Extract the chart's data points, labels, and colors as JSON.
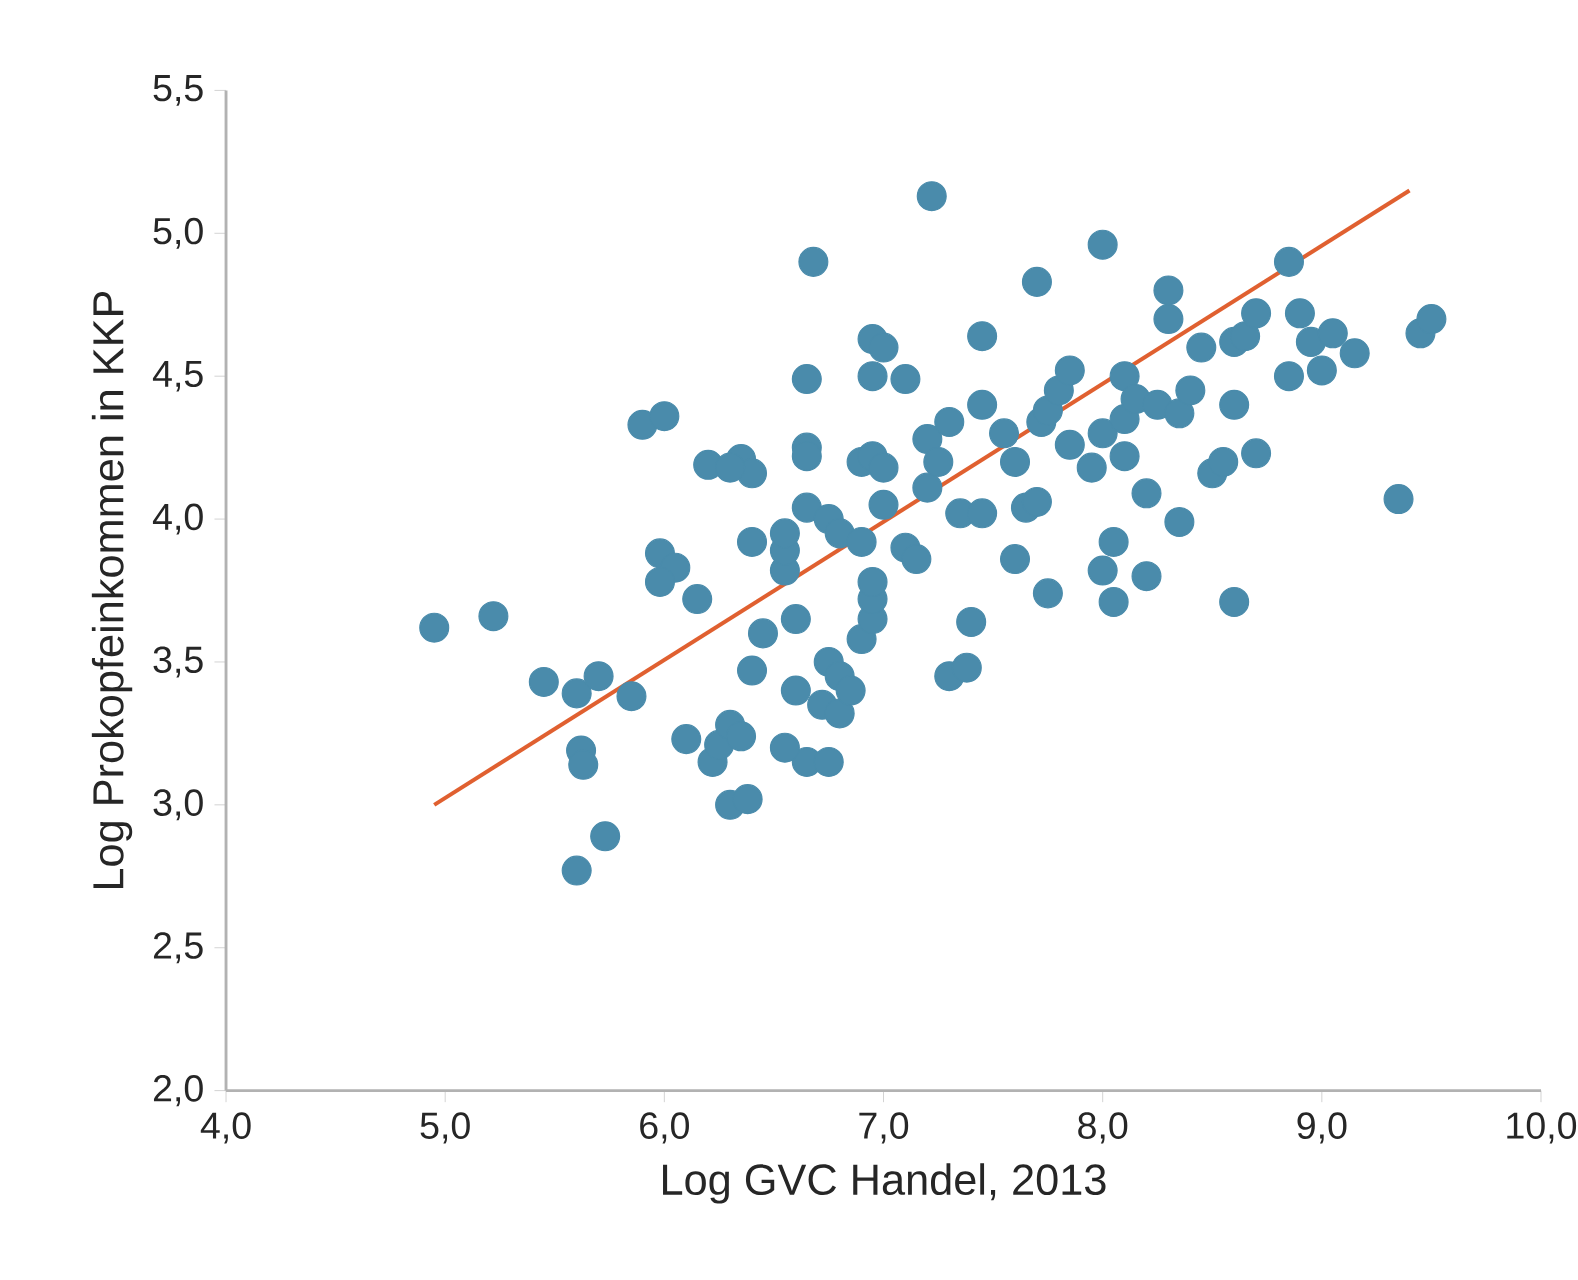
{
  "chart_data": {
    "type": "scatter",
    "xlabel": "Log GVC Handel, 2013",
    "ylabel": "Log Prokopfeinkommen in KKP",
    "xlim": [
      4.0,
      10.0
    ],
    "ylim": [
      2.0,
      5.5
    ],
    "xticks": [
      {
        "value": 4.0,
        "label": "4,0"
      },
      {
        "value": 5.0,
        "label": "5,0"
      },
      {
        "value": 6.0,
        "label": "6,0"
      },
      {
        "value": 7.0,
        "label": "7,0"
      },
      {
        "value": 8.0,
        "label": "8,0"
      },
      {
        "value": 9.0,
        "label": "9,0"
      },
      {
        "value": 10.0,
        "label": "10,0"
      }
    ],
    "yticks": [
      {
        "value": 2.0,
        "label": "2,0"
      },
      {
        "value": 2.5,
        "label": "2,5"
      },
      {
        "value": 3.0,
        "label": "3,0"
      },
      {
        "value": 3.5,
        "label": "3,5"
      },
      {
        "value": 4.0,
        "label": "4,0"
      },
      {
        "value": 4.5,
        "label": "4,5"
      },
      {
        "value": 5.0,
        "label": "5,0"
      },
      {
        "value": 5.5,
        "label": "5,5"
      }
    ],
    "grid": false,
    "series": [
      {
        "color": "#4a8bab",
        "marker": "circle",
        "x": [
          4.95,
          5.22,
          5.45,
          5.6,
          5.7,
          5.85,
          5.62,
          5.63,
          5.73,
          5.6,
          5.9,
          6.0,
          5.98,
          6.05,
          5.98,
          6.15,
          6.1,
          6.22,
          6.25,
          6.3,
          6.35,
          6.3,
          6.38,
          6.2,
          6.35,
          6.4,
          6.3,
          6.4,
          6.45,
          6.4,
          6.55,
          6.55,
          6.55,
          6.6,
          6.6,
          6.65,
          6.55,
          6.75,
          6.65,
          6.68,
          6.65,
          6.65,
          6.65,
          6.75,
          6.8,
          6.9,
          6.75,
          6.8,
          6.72,
          6.8,
          6.85,
          6.9,
          6.95,
          6.95,
          6.95,
          6.9,
          6.95,
          7.0,
          6.95,
          6.95,
          7.0,
          7.1,
          7.1,
          7.15,
          7.0,
          7.2,
          7.22,
          7.2,
          7.25,
          7.3,
          7.3,
          7.38,
          7.4,
          7.35,
          7.45,
          7.45,
          7.45,
          7.55,
          7.6,
          7.6,
          7.65,
          7.7,
          7.7,
          7.72,
          7.75,
          7.75,
          7.8,
          7.85,
          7.85,
          7.95,
          8.0,
          8.0,
          8.0,
          8.05,
          8.05,
          8.1,
          8.1,
          8.1,
          8.15,
          8.2,
          8.2,
          8.25,
          8.3,
          8.3,
          8.35,
          8.35,
          8.4,
          8.45,
          8.5,
          8.55,
          8.6,
          8.6,
          8.6,
          8.65,
          8.7,
          8.7,
          8.85,
          8.85,
          8.9,
          8.95,
          9.0,
          9.05,
          9.15,
          9.35,
          9.45,
          9.5
        ],
        "values": [
          3.62,
          3.66,
          3.43,
          3.39,
          3.45,
          3.38,
          3.19,
          3.14,
          2.89,
          2.77,
          4.33,
          4.36,
          3.88,
          3.83,
          3.78,
          3.72,
          3.23,
          3.15,
          3.21,
          3.28,
          3.24,
          3.0,
          3.02,
          4.19,
          4.21,
          4.16,
          4.18,
          3.92,
          3.6,
          3.47,
          3.82,
          3.89,
          3.95,
          3.65,
          3.4,
          3.15,
          3.2,
          3.15,
          4.49,
          4.9,
          4.25,
          4.22,
          4.04,
          4.0,
          3.95,
          3.92,
          3.5,
          3.45,
          3.35,
          3.32,
          3.4,
          3.58,
          3.65,
          3.72,
          3.78,
          4.2,
          4.22,
          4.18,
          4.5,
          4.63,
          4.6,
          4.49,
          3.9,
          3.86,
          4.05,
          4.11,
          5.13,
          4.28,
          4.2,
          4.34,
          3.45,
          3.48,
          3.64,
          4.02,
          4.02,
          4.64,
          4.4,
          4.3,
          4.2,
          3.86,
          4.04,
          4.06,
          4.83,
          4.34,
          4.38,
          3.74,
          4.45,
          4.52,
          4.26,
          4.18,
          4.96,
          4.3,
          3.82,
          3.92,
          3.71,
          4.35,
          4.5,
          4.22,
          4.42,
          3.8,
          4.09,
          4.4,
          4.8,
          4.7,
          4.37,
          3.99,
          4.45,
          4.6,
          4.16,
          4.2,
          4.4,
          4.62,
          3.71,
          4.64,
          4.23,
          4.72,
          4.9,
          4.5,
          4.72,
          4.62,
          4.52,
          4.65,
          4.58,
          4.07,
          4.65,
          4.7
        ]
      },
      {
        "type": "line",
        "color": "#e06030",
        "marker": "none",
        "line_style": "solid",
        "x": [
          4.95,
          9.4
        ],
        "values": [
          3.0,
          5.15
        ]
      }
    ]
  }
}
